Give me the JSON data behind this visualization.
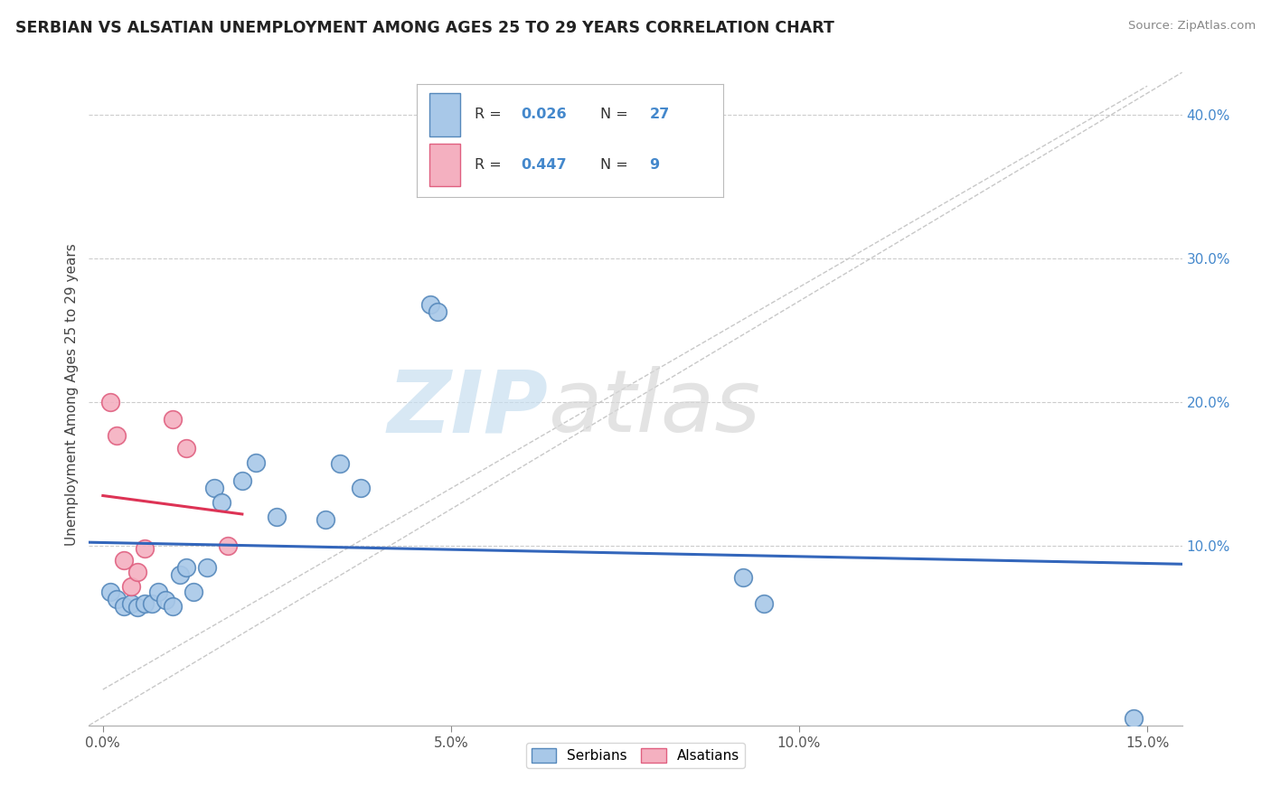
{
  "title": "SERBIAN VS ALSATIAN UNEMPLOYMENT AMONG AGES 25 TO 29 YEARS CORRELATION CHART",
  "source": "Source: ZipAtlas.com",
  "xlabel": "",
  "ylabel": "Unemployment Among Ages 25 to 29 years",
  "xlim": [
    -0.002,
    0.155
  ],
  "ylim": [
    -0.025,
    0.435
  ],
  "xticks": [
    0.0,
    0.05,
    0.1,
    0.15
  ],
  "xticklabels": [
    "0.0%",
    "5.0%",
    "10.0%",
    "15.0%"
  ],
  "yticks": [
    0.1,
    0.2,
    0.3,
    0.4
  ],
  "yticklabels": [
    "10.0%",
    "20.0%",
    "30.0%",
    "40.0%"
  ],
  "serbian_x": [
    0.001,
    0.002,
    0.003,
    0.004,
    0.005,
    0.006,
    0.007,
    0.008,
    0.009,
    0.01,
    0.011,
    0.012,
    0.013,
    0.015,
    0.016,
    0.017,
    0.02,
    0.022,
    0.025,
    0.032,
    0.034,
    0.037,
    0.047,
    0.048,
    0.092,
    0.095,
    0.148
  ],
  "serbian_y": [
    0.068,
    0.063,
    0.058,
    0.06,
    0.057,
    0.06,
    0.06,
    0.068,
    0.062,
    0.058,
    0.08,
    0.085,
    0.068,
    0.085,
    0.14,
    0.13,
    0.145,
    0.158,
    0.12,
    0.118,
    0.157,
    0.14,
    0.268,
    0.263,
    0.078,
    0.06,
    -0.02
  ],
  "alsatian_x": [
    0.001,
    0.002,
    0.003,
    0.004,
    0.005,
    0.006,
    0.01,
    0.012,
    0.018
  ],
  "alsatian_y": [
    0.2,
    0.177,
    0.09,
    0.072,
    0.082,
    0.098,
    0.188,
    0.168,
    0.1
  ],
  "serbian_color": "#a8c8e8",
  "alsatian_color": "#f4b0c0",
  "serbian_edge": "#5588bb",
  "alsatian_edge": "#e06080",
  "trend_serbian_color": "#3366bb",
  "trend_alsatian_color": "#dd3355",
  "diag_color": "#c8c8c8",
  "R_serbian": 0.026,
  "N_serbian": 27,
  "R_alsatian": 0.447,
  "N_alsatian": 9,
  "background_color": "#ffffff",
  "grid_color": "#cccccc",
  "ytick_color": "#4488cc",
  "xtick_color": "#555555"
}
